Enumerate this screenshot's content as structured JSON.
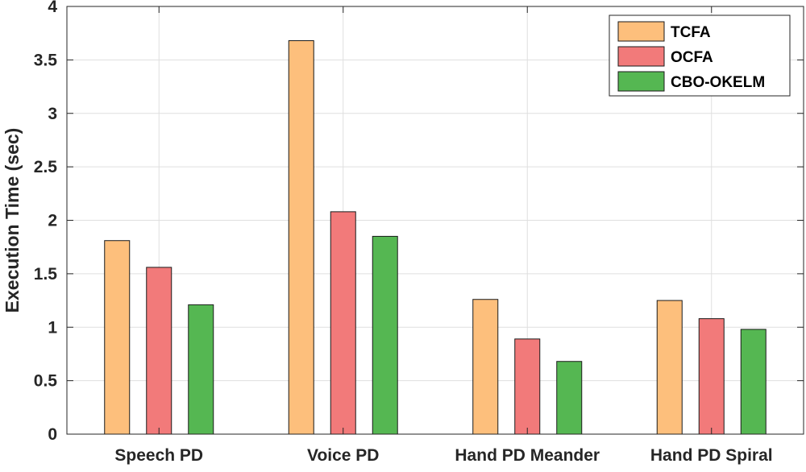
{
  "chart_data": {
    "type": "bar",
    "title": "",
    "xlabel": "",
    "ylabel": "Execution Time (sec)",
    "ylim": [
      0,
      4
    ],
    "yticks": [
      0,
      0.5,
      1,
      1.5,
      2,
      2.5,
      3,
      3.5,
      4
    ],
    "ytick_labels": [
      "0",
      "0.5",
      "1",
      "1.5",
      "2",
      "2.5",
      "3",
      "3.5",
      "4"
    ],
    "categories": [
      "Speech PD",
      "Voice PD",
      "Hand PD Meander",
      "Hand PD Spiral"
    ],
    "series": [
      {
        "name": "TCFA",
        "color": "#FDBF7C",
        "values": [
          1.81,
          3.68,
          1.26,
          1.25
        ]
      },
      {
        "name": "OCFA",
        "color": "#F27A7A",
        "values": [
          1.56,
          2.08,
          0.89,
          1.08
        ]
      },
      {
        "name": "CBO-OKELM",
        "color": "#55B752",
        "values": [
          1.21,
          1.85,
          0.68,
          0.98
        ]
      }
    ],
    "grid": true,
    "legend_position": "top-right"
  }
}
